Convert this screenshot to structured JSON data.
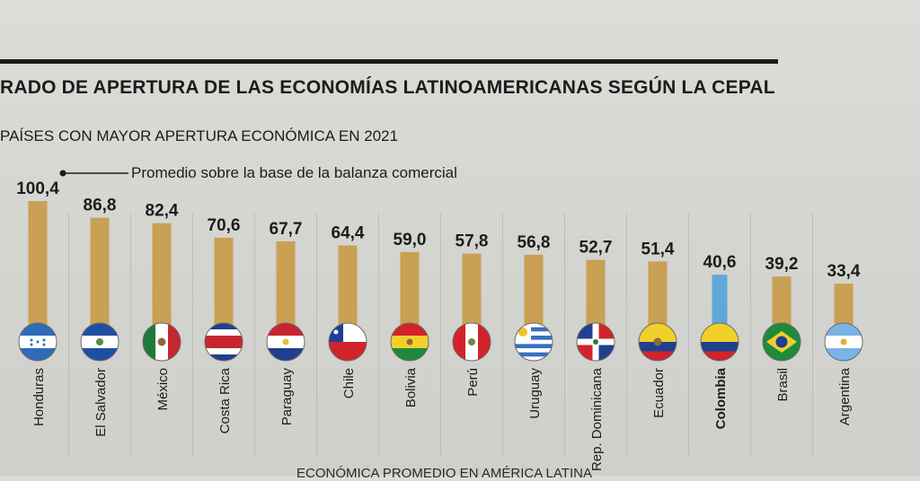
{
  "header": {
    "title": "RADO DE APERTURA DE LAS ECONOMÍAS LATINOAMERICANAS SEGÚN LA CEPAL",
    "subtitle": "PAÍSES CON MAYOR APERTURA ECONÓMICA EN 2021",
    "annotation": "Promedio sobre la base de la balanza comercial",
    "footer": "ECONÓMICA PROMEDIO EN AMÉRICA LATINA"
  },
  "colors": {
    "bar": "#c9a054",
    "highlight_bar": "#5fa8d8",
    "text": "#1c1c1c"
  },
  "chart_data": {
    "type": "bar",
    "title": "RADO DE APERTURA DE LAS ECONOMÍAS LATINOAMERICANAS SEGÚN LA CEPAL",
    "subtitle": "PAÍSES CON MAYOR APERTURA ECONÓMICA EN 2021",
    "categories": [
      "Honduras",
      "El Salvador",
      "México",
      "Costa Rica",
      "Paraguay",
      "Chile",
      "Bolivia",
      "Perú",
      "Uruguay",
      "Rep. Dominicana",
      "Ecuador",
      "Colombia",
      "Brasil",
      "Argentina"
    ],
    "values": [
      100.4,
      86.8,
      82.4,
      70.6,
      67.7,
      64.4,
      59.0,
      57.8,
      56.8,
      52.7,
      51.4,
      40.6,
      39.2,
      33.4
    ],
    "value_labels": [
      "100,4",
      "86,8",
      "82,4",
      "70,6",
      "67,7",
      "64,4",
      "59,0",
      "57,8",
      "56,8",
      "52,7",
      "51,4",
      "40,6",
      "39,2",
      "33,4"
    ],
    "highlight": "Colombia",
    "flags": [
      "honduras-flag-icon",
      "el-salvador-flag-icon",
      "mexico-flag-icon",
      "costa-rica-flag-icon",
      "paraguay-flag-icon",
      "chile-flag-icon",
      "bolivia-flag-icon",
      "peru-flag-icon",
      "uruguay-flag-icon",
      "dominican-republic-flag-icon",
      "ecuador-flag-icon",
      "colombia-flag-icon",
      "brazil-flag-icon",
      "argentina-flag-icon"
    ],
    "ylim": [
      0,
      100.4
    ],
    "grid": false,
    "legend": "none"
  }
}
